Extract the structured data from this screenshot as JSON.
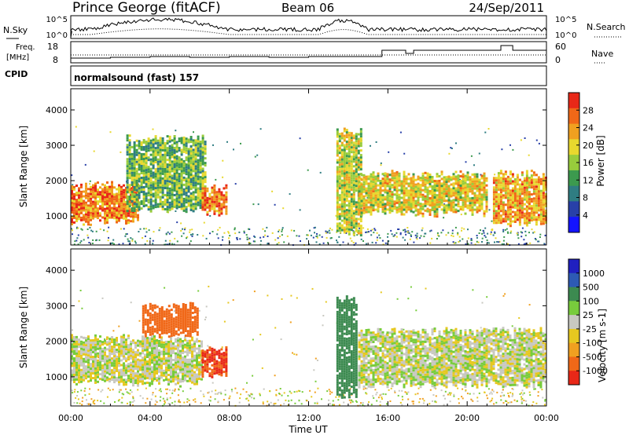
{
  "header": {
    "station": "Prince George (fitACF)",
    "beam": "Beam 06",
    "date": "24/Sep/2011"
  },
  "noise_panel": {
    "left_label": "N.Sky",
    "left_ticks": [
      "10^5",
      "10^0"
    ],
    "right_label": "N.Search",
    "right_ticks": [
      "10^5",
      "10^0"
    ]
  },
  "freq_panel": {
    "left_label_1": "Freq.",
    "left_label_2": "[MHz]",
    "left_ticks": [
      "18",
      "8"
    ],
    "right_label": "Nave",
    "right_ticks": [
      "60",
      "0"
    ],
    "cpid_label": "CPID"
  },
  "cpid_text": "normalsound (fast) 157",
  "colors": {
    "power_scale": [
      "#1414ff",
      "#2840a8",
      "#2f7d82",
      "#3c9a4e",
      "#98cc3c",
      "#e8d82e",
      "#f0a020",
      "#f06818",
      "#e82818"
    ],
    "velocity_scale": [
      "#2020c0",
      "#2d5ab4",
      "#3c8a50",
      "#78cc3c",
      "#c8c8c0",
      "#e6c820",
      "#f0a020",
      "#f06818",
      "#e82818"
    ]
  },
  "chart_data": [
    {
      "type": "heatmap",
      "title": "Power",
      "ylabel": "Slant Range [km]",
      "xlabel": "",
      "ylim": [
        180,
        4600
      ],
      "yticks": [
        "1000",
        "2000",
        "3000",
        "4000"
      ],
      "xticks": [
        "00:00",
        "04:00",
        "08:00",
        "12:00",
        "16:00",
        "20:00",
        "00:00"
      ],
      "colorbar": {
        "label": "Power [dB]",
        "ticks": [
          "28",
          "24",
          "20",
          "16",
          "12",
          "8",
          "4"
        ],
        "range": [
          0,
          32
        ]
      },
      "echo_regions": [
        {
          "t_start": 0.0,
          "t_end": 3.4,
          "range_low": 850,
          "range_high": 1900,
          "power_db": 26
        },
        {
          "t_start": 2.8,
          "t_end": 6.8,
          "range_low": 1200,
          "range_high": 3200,
          "power_db": 14
        },
        {
          "t_start": 6.6,
          "t_end": 7.9,
          "range_low": 1100,
          "range_high": 1800,
          "power_db": 27
        },
        {
          "t_start": 13.4,
          "t_end": 14.6,
          "range_low": 500,
          "range_high": 3400,
          "power_db": 18
        },
        {
          "t_start": 14.5,
          "t_end": 21.0,
          "range_low": 1100,
          "range_high": 2200,
          "power_db": 20
        },
        {
          "t_start": 21.3,
          "t_end": 24.0,
          "range_low": 800,
          "range_high": 2200,
          "power_db": 24
        }
      ]
    },
    {
      "type": "heatmap",
      "title": "Velocity",
      "ylabel": "Slant Range [km]",
      "xlabel": "Time UT",
      "ylim": [
        180,
        4600
      ],
      "yticks": [
        "1000",
        "2000",
        "3000",
        "4000"
      ],
      "xticks": [
        "00:00",
        "04:00",
        "08:00",
        "12:00",
        "16:00",
        "20:00",
        "00:00"
      ],
      "colorbar": {
        "label": "Velocity [m s-1]",
        "ticks": [
          "1000",
          "500",
          "100",
          "25",
          "-25",
          "-100",
          "-500",
          "-1000"
        ]
      },
      "echo_regions": [
        {
          "t_start": 0.0,
          "t_end": 6.6,
          "range_low": 850,
          "range_high": 2100,
          "velocity": 0
        },
        {
          "t_start": 3.6,
          "t_end": 6.4,
          "range_low": 2200,
          "range_high": 3000,
          "velocity": -500
        },
        {
          "t_start": 6.6,
          "t_end": 7.9,
          "range_low": 1100,
          "range_high": 1800,
          "velocity": -700
        },
        {
          "t_start": 13.4,
          "t_end": 14.4,
          "range_low": 500,
          "range_high": 3200,
          "velocity": 150
        },
        {
          "t_start": 14.5,
          "t_end": 24.0,
          "range_low": 800,
          "range_high": 2300,
          "velocity": 0
        }
      ]
    }
  ]
}
